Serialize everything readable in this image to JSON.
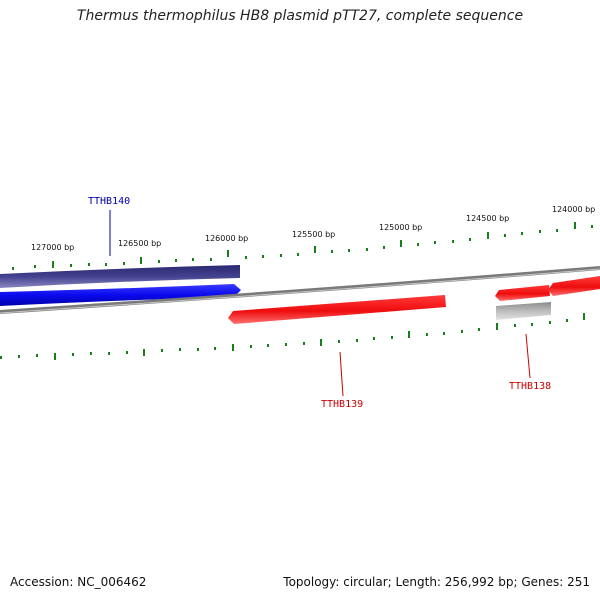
{
  "title": "Thermus thermophilus HB8 plasmid pTT27, complete sequence",
  "footer": {
    "accession": "Accession: NC_006462",
    "summary": "Topology: circular; Length: 256,992 bp; Genes: 251"
  },
  "ruler": {
    "labels": [
      "127000 bp",
      "126500 bp",
      "126000 bp",
      "125500 bp",
      "125000 bp",
      "124500 bp",
      "124000 bp"
    ]
  },
  "genes": [
    {
      "name": "TTHB140",
      "strand": "forward",
      "color": "#1010cc",
      "label_color": "#0000aa"
    },
    {
      "name": "TTHB139",
      "strand": "reverse",
      "color": "#ee1111",
      "label_color": "#cc0000"
    },
    {
      "name": "TTHB138",
      "strand": "reverse",
      "color": "#ee1111",
      "label_color": "#cc0000"
    }
  ],
  "colors": {
    "backbone": "#808080",
    "ruler_ticks": "#1a7f1a",
    "cog_track_purple": "#3d3a85",
    "cog_track_gray": "#aaaaaa"
  }
}
